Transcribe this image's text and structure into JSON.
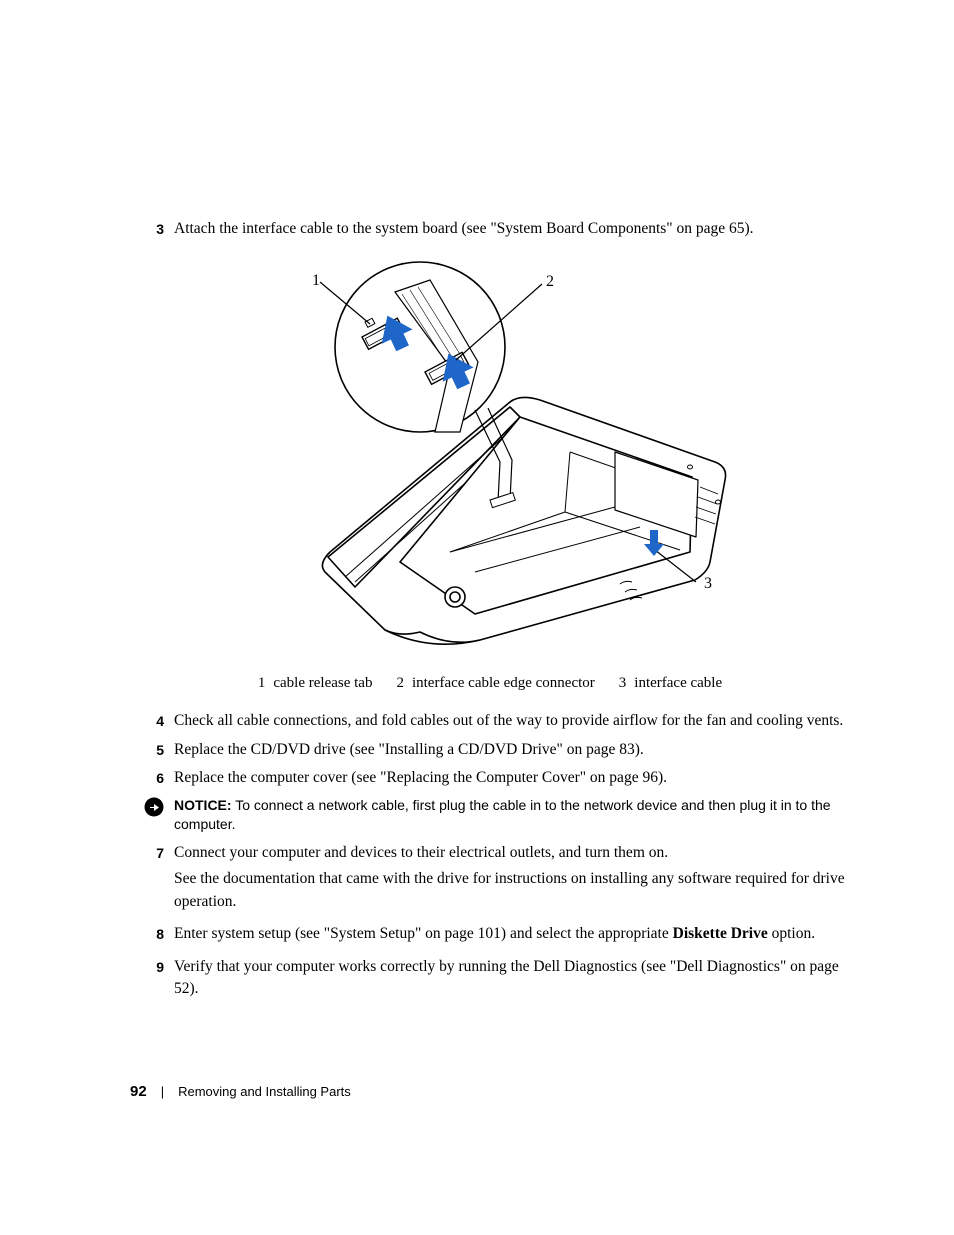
{
  "steps_top": [
    {
      "n": "3",
      "text": "Attach the interface cable to the system board (see \"System Board Components\" on page 65)."
    }
  ],
  "figure": {
    "callouts": {
      "c1": "1",
      "c2": "2",
      "c3": "3"
    }
  },
  "legend": [
    {
      "n": "1",
      "text": "cable release tab"
    },
    {
      "n": "2",
      "text": "interface cable edge connector"
    },
    {
      "n": "3",
      "text": "interface cable"
    }
  ],
  "steps_mid": [
    {
      "n": "4",
      "text": "Check all cable connections, and fold cables out of the way to provide airflow for the fan and cooling vents."
    },
    {
      "n": "5",
      "text": "Replace the CD/DVD drive (see \"Installing a CD/DVD Drive\" on page 83)."
    },
    {
      "n": "6",
      "text": "Replace the computer cover (see \"Replacing the Computer Cover\" on page 96)."
    }
  ],
  "notice": {
    "label": "NOTICE:",
    "text": " To connect a network cable, first plug the cable in to the network device and then plug it in to the computer."
  },
  "steps_after_notice": [
    {
      "n": "7",
      "paras": [
        "Connect your computer and devices to their electrical outlets, and turn them on.",
        "See the documentation that came with the drive for instructions on installing any software required for drive operation."
      ]
    },
    {
      "n": "8",
      "paras": [
        "Enter system setup (see \"System Setup\" on page 101) and select the appropriate <b>Diskette Drive</b> option."
      ]
    },
    {
      "n": "9",
      "paras": [
        "Verify that your computer works correctly by running the Dell Diagnostics (see \"Dell Diagnostics\" on page 52)."
      ]
    }
  ],
  "footer": {
    "page": "92",
    "sep": "|",
    "section": "Removing and Installing Parts"
  },
  "colors": {
    "text": "#000000",
    "bg": "#ffffff",
    "arrow": "#1e66c8",
    "notice_icon": "#000000"
  }
}
